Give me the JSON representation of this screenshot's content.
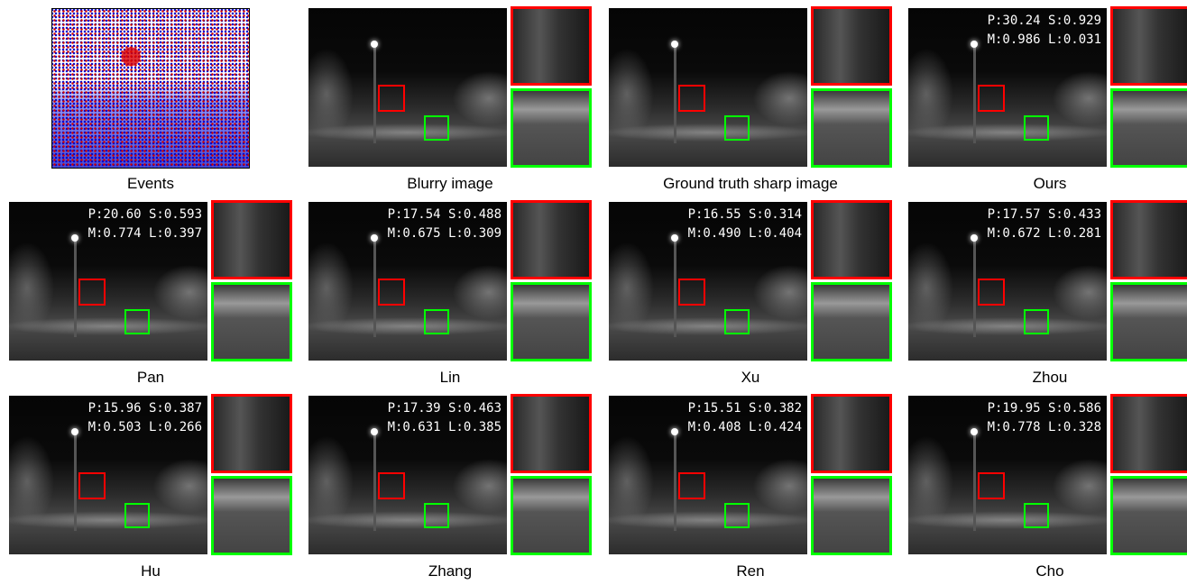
{
  "panels": [
    {
      "caption": "Events",
      "kind": "events"
    },
    {
      "caption": "Blurry image",
      "kind": "image"
    },
    {
      "caption": "Ground truth sharp image",
      "kind": "image"
    },
    {
      "caption": "Ours",
      "kind": "image",
      "metrics": [
        "P:30.24 S:0.929",
        "M:0.986 L:0.031"
      ]
    },
    {
      "caption": "Pan",
      "kind": "image",
      "metrics": [
        "P:20.60 S:0.593",
        "M:0.774 L:0.397"
      ]
    },
    {
      "caption": "Lin",
      "kind": "image",
      "metrics": [
        "P:17.54 S:0.488",
        "M:0.675 L:0.309"
      ]
    },
    {
      "caption": "Xu",
      "kind": "image",
      "metrics": [
        "P:16.55 S:0.314",
        "M:0.490 L:0.404"
      ]
    },
    {
      "caption": "Zhou",
      "kind": "image",
      "metrics": [
        "P:17.57 S:0.433",
        "M:0.672 L:0.281"
      ]
    },
    {
      "caption": "Hu",
      "kind": "image",
      "metrics": [
        "P:15.96 S:0.387",
        "M:0.503 L:0.266"
      ]
    },
    {
      "caption": "Zhang",
      "kind": "image",
      "metrics": [
        "P:17.39 S:0.463",
        "M:0.631 L:0.385"
      ]
    },
    {
      "caption": "Ren",
      "kind": "image",
      "metrics": [
        "P:15.51 S:0.382",
        "M:0.408 L:0.424"
      ]
    },
    {
      "caption": "Cho",
      "kind": "image",
      "metrics": [
        "P:19.95 S:0.586",
        "M:0.778 L:0.328"
      ]
    }
  ]
}
